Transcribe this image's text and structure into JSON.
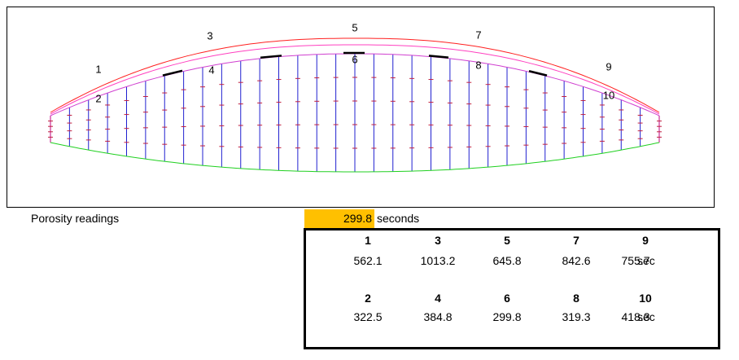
{
  "diagram": {
    "point_labels": [
      1,
      2,
      3,
      4,
      5,
      6,
      7,
      8,
      9,
      10
    ]
  },
  "porosity": {
    "label": "Porosity readings",
    "min_value": 299.8,
    "unit": "seconds"
  },
  "table": {
    "rows": [
      {
        "headers": [
          1,
          3,
          5,
          7,
          9
        ],
        "values": [
          562.1,
          1013.2,
          645.8,
          842.6,
          755.7
        ],
        "unit": "sec"
      },
      {
        "headers": [
          2,
          4,
          6,
          8,
          10
        ],
        "values": [
          322.5,
          384.8,
          299.8,
          319.3,
          418.3
        ],
        "unit": "sec"
      }
    ]
  }
}
